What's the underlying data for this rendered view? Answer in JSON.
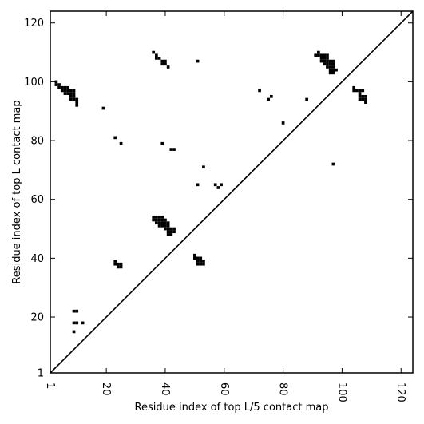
{
  "chart_data": {
    "type": "scatter",
    "title": "",
    "xlabel": "Residue index of top L/5 contact map",
    "ylabel": "Residue index of top L contact map",
    "xlim": [
      1,
      124
    ],
    "ylim": [
      1,
      124
    ],
    "x_ticks": [
      "1",
      "20",
      "40",
      "60",
      "80",
      "100",
      "120"
    ],
    "x_tick_values": [
      1,
      20,
      40,
      60,
      80,
      100,
      120
    ],
    "y_ticks": [
      "1",
      "20",
      "40",
      "60",
      "80",
      "100",
      "120"
    ],
    "y_tick_values": [
      1,
      20,
      40,
      60,
      80,
      100,
      120
    ],
    "grid": false,
    "marker": "filled-square",
    "marker_color": "#000000",
    "diagonal_line": {
      "from": [
        1,
        1
      ],
      "to": [
        124,
        124
      ]
    },
    "series": [
      {
        "points": [
          [
            3,
            100
          ],
          [
            3,
            99
          ],
          [
            4,
            99
          ],
          [
            4,
            98
          ],
          [
            5,
            98
          ],
          [
            5,
            97
          ],
          [
            6,
            98
          ],
          [
            6,
            97
          ],
          [
            6,
            96
          ],
          [
            7,
            98
          ],
          [
            7,
            97
          ],
          [
            7,
            96
          ],
          [
            8,
            97
          ],
          [
            8,
            96
          ],
          [
            8,
            95
          ],
          [
            8,
            94
          ],
          [
            9,
            97
          ],
          [
            9,
            96
          ],
          [
            9,
            95
          ],
          [
            9,
            94
          ],
          [
            10,
            94
          ],
          [
            10,
            93
          ],
          [
            10,
            92
          ],
          [
            19,
            91
          ],
          [
            23,
            81
          ],
          [
            25,
            79
          ],
          [
            9,
            22
          ],
          [
            10,
            22
          ],
          [
            9,
            18
          ],
          [
            10,
            18
          ],
          [
            12,
            18
          ],
          [
            9,
            15
          ],
          [
            23,
            39
          ],
          [
            23,
            38
          ],
          [
            24,
            38
          ],
          [
            24,
            37
          ],
          [
            25,
            38
          ],
          [
            25,
            37
          ],
          [
            36,
            110
          ],
          [
            37,
            109
          ],
          [
            37,
            108
          ],
          [
            38,
            108
          ],
          [
            39,
            107
          ],
          [
            39,
            106
          ],
          [
            40,
            107
          ],
          [
            40,
            106
          ],
          [
            41,
            105
          ],
          [
            51,
            107
          ],
          [
            39,
            79
          ],
          [
            42,
            77
          ],
          [
            43,
            77
          ],
          [
            53,
            71
          ],
          [
            51,
            65
          ],
          [
            57,
            65
          ],
          [
            58,
            64
          ],
          [
            59,
            65
          ],
          [
            36,
            54
          ],
          [
            36,
            53
          ],
          [
            37,
            54
          ],
          [
            37,
            53
          ],
          [
            37,
            52
          ],
          [
            38,
            54
          ],
          [
            38,
            53
          ],
          [
            38,
            52
          ],
          [
            38,
            51
          ],
          [
            39,
            54
          ],
          [
            39,
            53
          ],
          [
            39,
            52
          ],
          [
            39,
            51
          ],
          [
            40,
            53
          ],
          [
            40,
            52
          ],
          [
            40,
            51
          ],
          [
            40,
            50
          ],
          [
            41,
            52
          ],
          [
            41,
            51
          ],
          [
            41,
            50
          ],
          [
            41,
            49
          ],
          [
            41,
            48
          ],
          [
            42,
            50
          ],
          [
            42,
            49
          ],
          [
            42,
            48
          ],
          [
            43,
            50
          ],
          [
            43,
            49
          ],
          [
            50,
            41
          ],
          [
            50,
            40
          ],
          [
            51,
            40
          ],
          [
            51,
            39
          ],
          [
            51,
            38
          ],
          [
            52,
            40
          ],
          [
            52,
            39
          ],
          [
            52,
            38
          ],
          [
            53,
            39
          ],
          [
            53,
            38
          ],
          [
            72,
            97
          ],
          [
            75,
            94
          ],
          [
            76,
            95
          ],
          [
            80,
            86
          ],
          [
            88,
            94
          ],
          [
            91,
            109
          ],
          [
            92,
            110
          ],
          [
            92,
            109
          ],
          [
            93,
            109
          ],
          [
            93,
            108
          ],
          [
            93,
            107
          ],
          [
            94,
            109
          ],
          [
            94,
            108
          ],
          [
            94,
            107
          ],
          [
            94,
            106
          ],
          [
            95,
            109
          ],
          [
            95,
            108
          ],
          [
            95,
            107
          ],
          [
            95,
            106
          ],
          [
            95,
            105
          ],
          [
            96,
            107
          ],
          [
            96,
            106
          ],
          [
            96,
            105
          ],
          [
            96,
            104
          ],
          [
            96,
            103
          ],
          [
            97,
            107
          ],
          [
            97,
            106
          ],
          [
            97,
            105
          ],
          [
            97,
            104
          ],
          [
            97,
            103
          ],
          [
            98,
            104
          ],
          [
            97,
            72
          ],
          [
            104,
            98
          ],
          [
            104,
            97
          ],
          [
            105,
            97
          ],
          [
            106,
            97
          ],
          [
            106,
            96
          ],
          [
            106,
            95
          ],
          [
            106,
            94
          ],
          [
            107,
            97
          ],
          [
            107,
            95
          ],
          [
            107,
            94
          ],
          [
            108,
            95
          ],
          [
            108,
            94
          ],
          [
            108,
            93
          ]
        ]
      }
    ]
  }
}
